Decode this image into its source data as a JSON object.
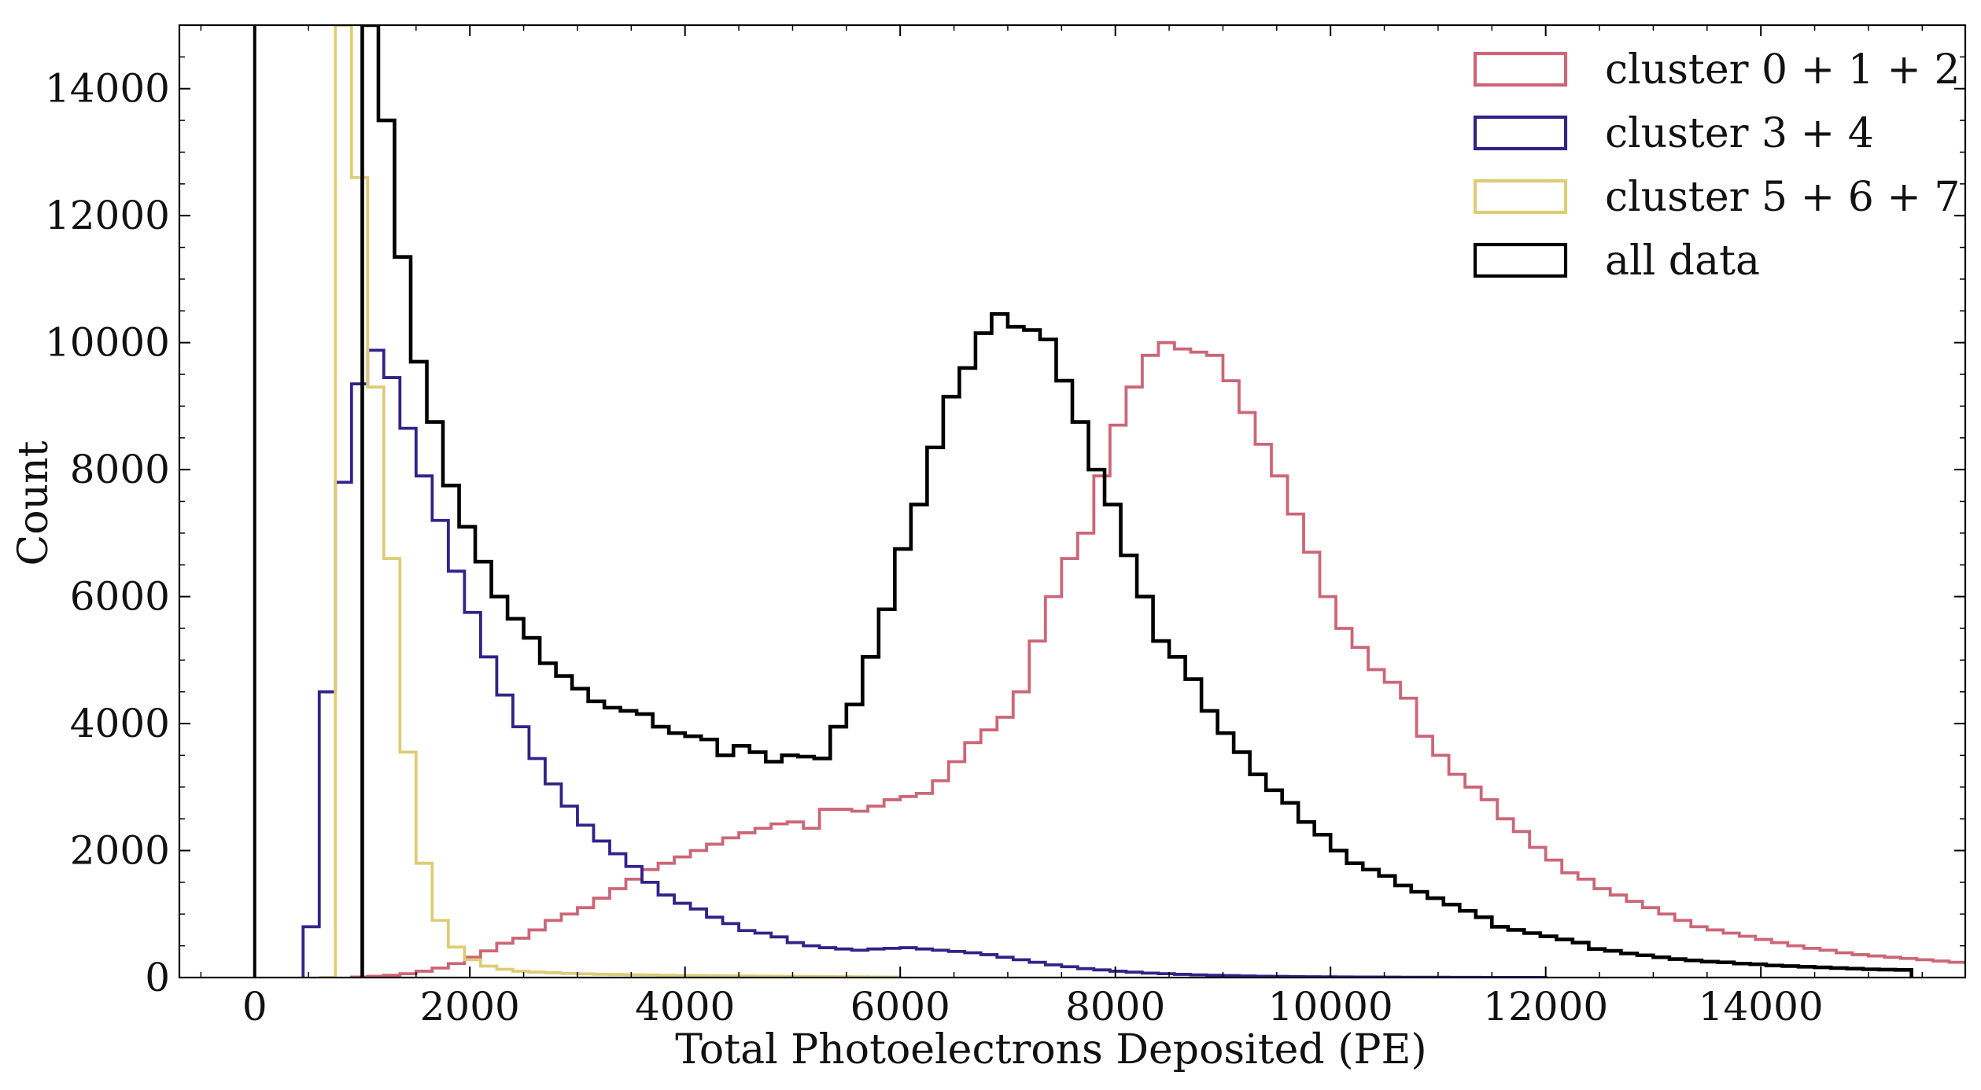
{
  "chart_data": {
    "type": "histogram",
    "xlabel": "Total Photoelectrons Deposited (PE)",
    "ylabel": "Count",
    "xlim": [
      -700,
      15900
    ],
    "ylim": [
      0,
      15000
    ],
    "x_ticks": [
      0,
      2000,
      4000,
      6000,
      8000,
      10000,
      12000,
      14000
    ],
    "y_ticks": [
      0,
      2000,
      4000,
      6000,
      8000,
      10000,
      12000,
      14000
    ],
    "bin_width": 150,
    "bin_start": 0,
    "grid": false,
    "legend_position": "top-right",
    "reference_line": {
      "x": 0,
      "color": "#000000"
    },
    "series": [
      {
        "name": "cluster 0 + 1 + 2",
        "color": "#cc6677",
        "edges": [
          900,
          15000
        ],
        "values": [
          8,
          20,
          35,
          60,
          100,
          150,
          220,
          320,
          420,
          540,
          620,
          750,
          900,
          1000,
          1100,
          1250,
          1400,
          1550,
          1700,
          1800,
          1900,
          2000,
          2100,
          2200,
          2280,
          2350,
          2420,
          2450,
          2350,
          2650,
          2650,
          2620,
          2700,
          2800,
          2850,
          2900,
          3100,
          3400,
          3700,
          3900,
          4100,
          4500,
          5300,
          6000,
          6600,
          7000,
          7900,
          8700,
          9300,
          9800,
          10000,
          9900,
          9850,
          9800,
          9400,
          8900,
          8400,
          7900,
          7300,
          6700,
          6000,
          5500,
          5200,
          4850,
          4650,
          4400,
          3800,
          3500,
          3200,
          3000,
          2800,
          2500,
          2300,
          2050,
          1850,
          1650,
          1550,
          1400,
          1300,
          1200,
          1100,
          1000,
          900,
          800,
          750,
          700,
          650,
          600,
          550,
          500,
          460,
          430,
          390,
          360,
          340,
          320,
          300,
          280,
          260,
          240,
          230,
          220,
          200,
          190,
          180,
          170,
          160,
          150,
          140,
          130,
          125,
          120,
          115,
          110,
          105,
          100,
          95,
          90,
          88,
          85,
          82,
          80,
          80,
          80,
          80,
          80,
          80,
          80,
          80,
          80,
          80,
          80,
          80,
          80,
          80,
          80,
          80,
          80,
          80,
          80,
          80,
          80,
          80,
          80,
          80
        ]
      },
      {
        "name": "cluster 3 + 4",
        "color": "#332288",
        "edges": [
          450,
          12000
        ],
        "values": [
          800,
          4500,
          7800,
          9350,
          9880,
          9450,
          8650,
          7900,
          7200,
          6400,
          5750,
          5050,
          4450,
          3950,
          3450,
          3050,
          2700,
          2400,
          2150,
          1950,
          1750,
          1500,
          1300,
          1170,
          1080,
          950,
          850,
          740,
          700,
          640,
          550,
          500,
          470,
          450,
          430,
          450,
          460,
          470,
          450,
          430,
          410,
          390,
          360,
          320,
          280,
          240,
          200,
          170,
          140,
          120,
          100,
          85,
          70,
          60,
          50,
          42,
          35,
          30,
          25,
          20,
          18,
          15,
          12,
          10,
          9,
          8,
          7,
          6,
          5,
          4,
          4,
          3,
          3,
          2,
          2,
          2,
          1
        ]
      },
      {
        "name": "cluster 5 + 6 + 7",
        "color": "#ddcc77",
        "edges": [
          600,
          6000
        ],
        "values": [
          0,
          15300,
          12600,
          9300,
          6600,
          3550,
          1800,
          900,
          480,
          280,
          180,
          130,
          100,
          85,
          75,
          65,
          58,
          52,
          47,
          43,
          40,
          36,
          33,
          30,
          28,
          26,
          24,
          22,
          20,
          18,
          16,
          14,
          12,
          10,
          8,
          6
        ]
      },
      {
        "name": "all data",
        "color": "#000000",
        "edges": [
          1000,
          14850
        ],
        "values": [
          15500,
          13500,
          11350,
          9700,
          8750,
          7750,
          7100,
          6550,
          6000,
          5650,
          5350,
          4950,
          4750,
          4550,
          4350,
          4250,
          4200,
          4150,
          3950,
          3850,
          3800,
          3750,
          3500,
          3650,
          3550,
          3400,
          3500,
          3480,
          3450,
          3950,
          4300,
          5050,
          5800,
          6750,
          7450,
          8350,
          9150,
          9600,
          10150,
          10450,
          10250,
          10200,
          10050,
          9400,
          8750,
          8000,
          7450,
          6650,
          6000,
          5300,
          5050,
          4700,
          4200,
          3850,
          3550,
          3200,
          2950,
          2750,
          2450,
          2250,
          2000,
          1800,
          1700,
          1600,
          1450,
          1350,
          1250,
          1150,
          1050,
          950,
          800,
          750,
          700,
          650,
          600,
          550,
          450,
          420,
          380,
          350,
          320,
          290,
          270,
          250,
          240,
          220,
          210,
          190,
          180,
          170,
          160,
          150,
          140,
          130,
          125,
          120
        ]
      }
    ]
  }
}
